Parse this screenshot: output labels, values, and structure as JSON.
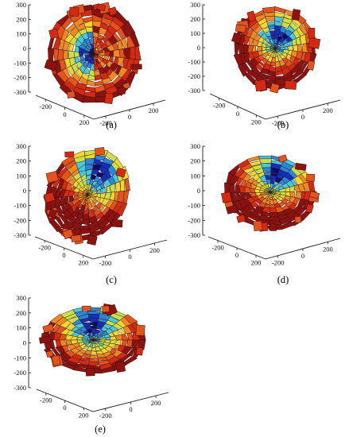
{
  "figure": {
    "panels": [
      {
        "label": "(a)",
        "view": "a",
        "y_ticks": [
          "300",
          "200",
          "100",
          "0",
          "-100",
          "-200",
          "-300"
        ],
        "left_axis_ticks": [
          "-200",
          "0",
          "200"
        ],
        "right_axis_ticks": [
          "-200",
          "0",
          "200"
        ]
      },
      {
        "label": "(b)",
        "view": "b",
        "y_ticks": [
          "300",
          "200",
          "100",
          "0",
          "-100",
          "-200",
          "-300"
        ],
        "left_axis_ticks": [
          "-200",
          "0",
          "200"
        ],
        "right_axis_ticks": [
          "-200",
          "0",
          "200"
        ]
      },
      {
        "label": "(c)",
        "view": "c",
        "y_ticks": [
          "300",
          "200",
          "100",
          "0",
          "-100",
          "-200",
          "-300"
        ],
        "left_axis_ticks": [
          "-200",
          "0",
          "200"
        ],
        "right_axis_ticks": [
          "-200",
          "0",
          "200"
        ]
      },
      {
        "label": "(d)",
        "view": "d",
        "y_ticks": [
          "300",
          "200",
          "100",
          "0",
          "-100",
          "-200",
          "-300"
        ],
        "left_axis_ticks": [
          "-200",
          "0",
          "200"
        ],
        "right_axis_ticks": [
          "-200",
          "0",
          "200"
        ]
      },
      {
        "label": "(e)",
        "view": "e",
        "y_ticks": [
          "300",
          "200",
          "100",
          "0",
          "-100",
          "-200",
          "-300"
        ],
        "left_axis_ticks": [
          "-200",
          "0",
          "200"
        ],
        "right_axis_ticks": [
          "-200",
          "0",
          "200"
        ]
      }
    ],
    "colors": {
      "dark_red": "#8c1212",
      "red": "#d42a12",
      "orange_red": "#e3531b",
      "orange": "#ef8a22",
      "yellow": "#f4d62e",
      "yellow_green": "#c9e04a",
      "cyan": "#47c8dc",
      "light_blue": "#2a86d8",
      "blue": "#1530b8",
      "dark_blue": "#0a0c6e",
      "axis": "#1a1a1a"
    }
  }
}
